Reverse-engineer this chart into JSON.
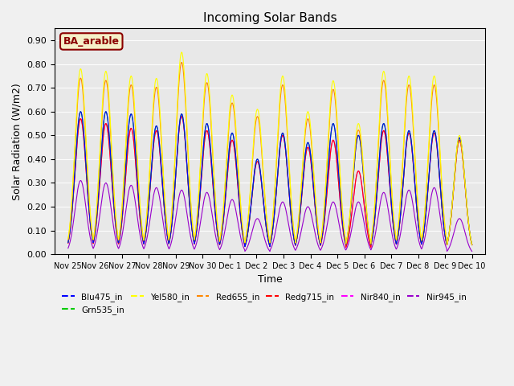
{
  "title": "Incoming Solar Bands",
  "xlabel": "Time",
  "ylabel": "Solar Radiation (W/m2)",
  "ylim": [
    0.0,
    0.95
  ],
  "yticks": [
    0.0,
    0.1,
    0.2,
    0.3,
    0.4,
    0.5,
    0.6,
    0.7,
    0.8,
    0.9
  ],
  "background_color": "#f0f0f0",
  "axes_bg_color": "#e8e8e8",
  "annotation_text": "BA_arable",
  "annotation_color": "#8B0000",
  "annotation_bg": "#f5f0c8",
  "legend_entries": [
    {
      "label": "Blu475_in",
      "color": "#0000ff"
    },
    {
      "label": "Grn535_in",
      "color": "#00cc00"
    },
    {
      "label": "Yel580_in",
      "color": "#ffff00"
    },
    {
      "label": "Red655_in",
      "color": "#ff8800"
    },
    {
      "label": "Redg715_in",
      "color": "#ff0000"
    },
    {
      "label": "Nir840_in",
      "color": "#ff00ff"
    },
    {
      "label": "Nir945_in",
      "color": "#9900cc"
    }
  ],
  "x_tick_labels": [
    "Nov 25",
    "Nov 26",
    "Nov 27",
    "Nov 28",
    "Nov 29",
    "Nov 30",
    "Dec 1",
    "Dec 2",
    "Dec 3",
    "Dec 4",
    "Dec 5",
    "Dec 6",
    "Dec 7",
    "Dec 8",
    "Dec 9",
    "Dec 10"
  ],
  "num_days": 16,
  "day_peaks": [
    0.78,
    0.77,
    0.75,
    0.74,
    0.85,
    0.76,
    0.67,
    0.61,
    0.75,
    0.6,
    0.73,
    0.55,
    0.77,
    0.75,
    0.75,
    0.5
  ],
  "nir945_peaks": [
    0.31,
    0.3,
    0.29,
    0.28,
    0.27,
    0.26,
    0.23,
    0.15,
    0.22,
    0.2,
    0.22,
    0.22,
    0.26,
    0.27,
    0.28,
    0.15
  ],
  "blu475_peaks": [
    0.6,
    0.6,
    0.59,
    0.54,
    0.59,
    0.55,
    0.51,
    0.4,
    0.51,
    0.47,
    0.55,
    0.5,
    0.55,
    0.52,
    0.52,
    0.49
  ],
  "grn535_peaks": [
    0.6,
    0.6,
    0.59,
    0.54,
    0.59,
    0.55,
    0.51,
    0.4,
    0.51,
    0.47,
    0.55,
    0.5,
    0.55,
    0.52,
    0.52,
    0.49
  ],
  "redg715_peaks": [
    0.57,
    0.55,
    0.53,
    0.52,
    0.58,
    0.52,
    0.48,
    0.39,
    0.5,
    0.45,
    0.48,
    0.35,
    0.52,
    0.51,
    0.51,
    0.48
  ],
  "nir840_peaks": [
    0.57,
    0.55,
    0.53,
    0.52,
    0.58,
    0.52,
    0.48,
    0.39,
    0.5,
    0.45,
    0.48,
    0.35,
    0.52,
    0.51,
    0.51,
    0.48
  ]
}
